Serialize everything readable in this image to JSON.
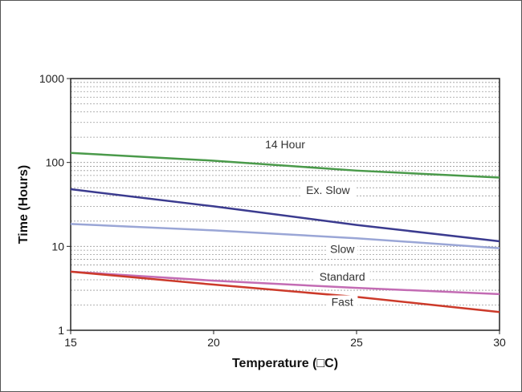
{
  "chart_data": {
    "type": "line",
    "title": "",
    "xlabel": "Temperature (□C)",
    "ylabel": "Time (Hours)",
    "xlim": [
      15,
      30
    ],
    "ylim": [
      1,
      1000
    ],
    "yscale": "log",
    "grid": "dotted minor horizontal lines",
    "legend": "none (labels placed on chart)",
    "x_ticks": [
      "15",
      "20",
      "25",
      "30"
    ],
    "y_ticks": [
      "1",
      "10",
      "100",
      "1000"
    ],
    "x": [
      15,
      20,
      25,
      30
    ],
    "series": [
      {
        "name": "14 Hour",
        "color": "#4a9a4a",
        "values": [
          130,
          105,
          80,
          66
        ],
        "label_at": [
          22.5,
          150
        ]
      },
      {
        "name": "Ex. Slow",
        "color": "#3b3b8f",
        "values": [
          48,
          30,
          18,
          11.5
        ],
        "label_at": [
          24,
          43
        ]
      },
      {
        "name": "Slow",
        "color": "#9aa6d6",
        "values": [
          18.5,
          15.5,
          12.5,
          9.5
        ],
        "label_at": [
          24.5,
          8.5
        ]
      },
      {
        "name": "Standard",
        "color": "#c36cb4",
        "values": [
          5,
          3.9,
          3.2,
          2.7
        ],
        "label_at": [
          24.5,
          4.0
        ]
      },
      {
        "name": "Fast",
        "color": "#cc3a2a",
        "values": [
          5,
          3.5,
          2.5,
          1.65
        ],
        "label_at": [
          24.5,
          2.0
        ]
      }
    ]
  }
}
